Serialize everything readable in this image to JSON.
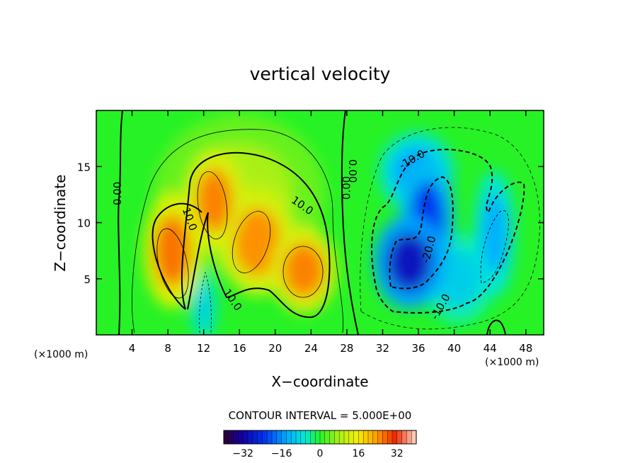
{
  "chart_data": {
    "type": "heatmap",
    "title": "vertical velocity",
    "xlabel": "X−coordinate",
    "ylabel": "Z−coordinate",
    "x_unit_left": "(×1000 m)",
    "x_unit_right": "(×1000 m)",
    "xlim": [
      0,
      50
    ],
    "ylim": [
      0,
      20
    ],
    "x_ticks": [
      4,
      8,
      12,
      16,
      20,
      24,
      28,
      32,
      36,
      40,
      44,
      48
    ],
    "y_ticks": [
      5,
      10,
      15
    ],
    "contour_interval_text": "CONTOUR INTERVAL = 5.000E+00",
    "contour_labels": [
      {
        "text": "0.00",
        "x": 2.4,
        "y": 12.6,
        "rot": -90
      },
      {
        "text": "0.00",
        "x": 28.6,
        "y": 14.6,
        "rot": 90
      },
      {
        "text": "0.00",
        "x": 28.0,
        "y": 13.1,
        "rot": -90
      },
      {
        "text": "10.0",
        "x": 10.4,
        "y": 10.3,
        "rot": 70
      },
      {
        "text": "10.0",
        "x": 23.0,
        "y": 11.5,
        "rot": 35
      },
      {
        "text": "10.0",
        "x": 15.2,
        "y": 3.1,
        "rot": 55
      },
      {
        "text": "-10.0",
        "x": 35.3,
        "y": 15.6,
        "rot": -30
      },
      {
        "text": "-20.0",
        "x": 37.2,
        "y": 7.6,
        "rot": -75
      },
      {
        "text": "-10.0",
        "x": 38.5,
        "y": 2.5,
        "rot": -60
      }
    ],
    "colorbar": {
      "range": [
        -40,
        40
      ],
      "ticks": [
        -32,
        -16,
        0,
        16,
        32
      ]
    },
    "cells": [
      {
        "x": 8.5,
        "y": 7.5,
        "v": 27,
        "sx": 2.0,
        "sy": 3.2
      },
      {
        "x": 13.2,
        "y": 12.0,
        "v": 26,
        "sx": 2.0,
        "sy": 2.8
      },
      {
        "x": 18.0,
        "y": 8.3,
        "v": 25,
        "sx": 2.6,
        "sy": 3.0
      },
      {
        "x": 23.2,
        "y": 5.8,
        "v": 26,
        "sx": 2.3,
        "sy": 2.4
      },
      {
        "x": 16.0,
        "y": 12.5,
        "v": 8,
        "sx": 6.0,
        "sy": 4.5
      },
      {
        "x": 12.0,
        "y": 2.5,
        "v": -10,
        "sx": 0.9,
        "sy": 2.0
      },
      {
        "x": 35.0,
        "y": 6.5,
        "v": -30,
        "sx": 2.5,
        "sy": 2.6
      },
      {
        "x": 37.0,
        "y": 10.2,
        "v": -24,
        "sx": 1.9,
        "sy": 3.5
      },
      {
        "x": 35.8,
        "y": 14.5,
        "v": -15,
        "sx": 2.6,
        "sy": 2.2
      },
      {
        "x": 44.5,
        "y": 9.0,
        "v": -14,
        "sx": 1.4,
        "sy": 3.5
      },
      {
        "x": 40.5,
        "y": 5.0,
        "v": -10,
        "sx": 2.5,
        "sy": 2.5
      }
    ]
  }
}
